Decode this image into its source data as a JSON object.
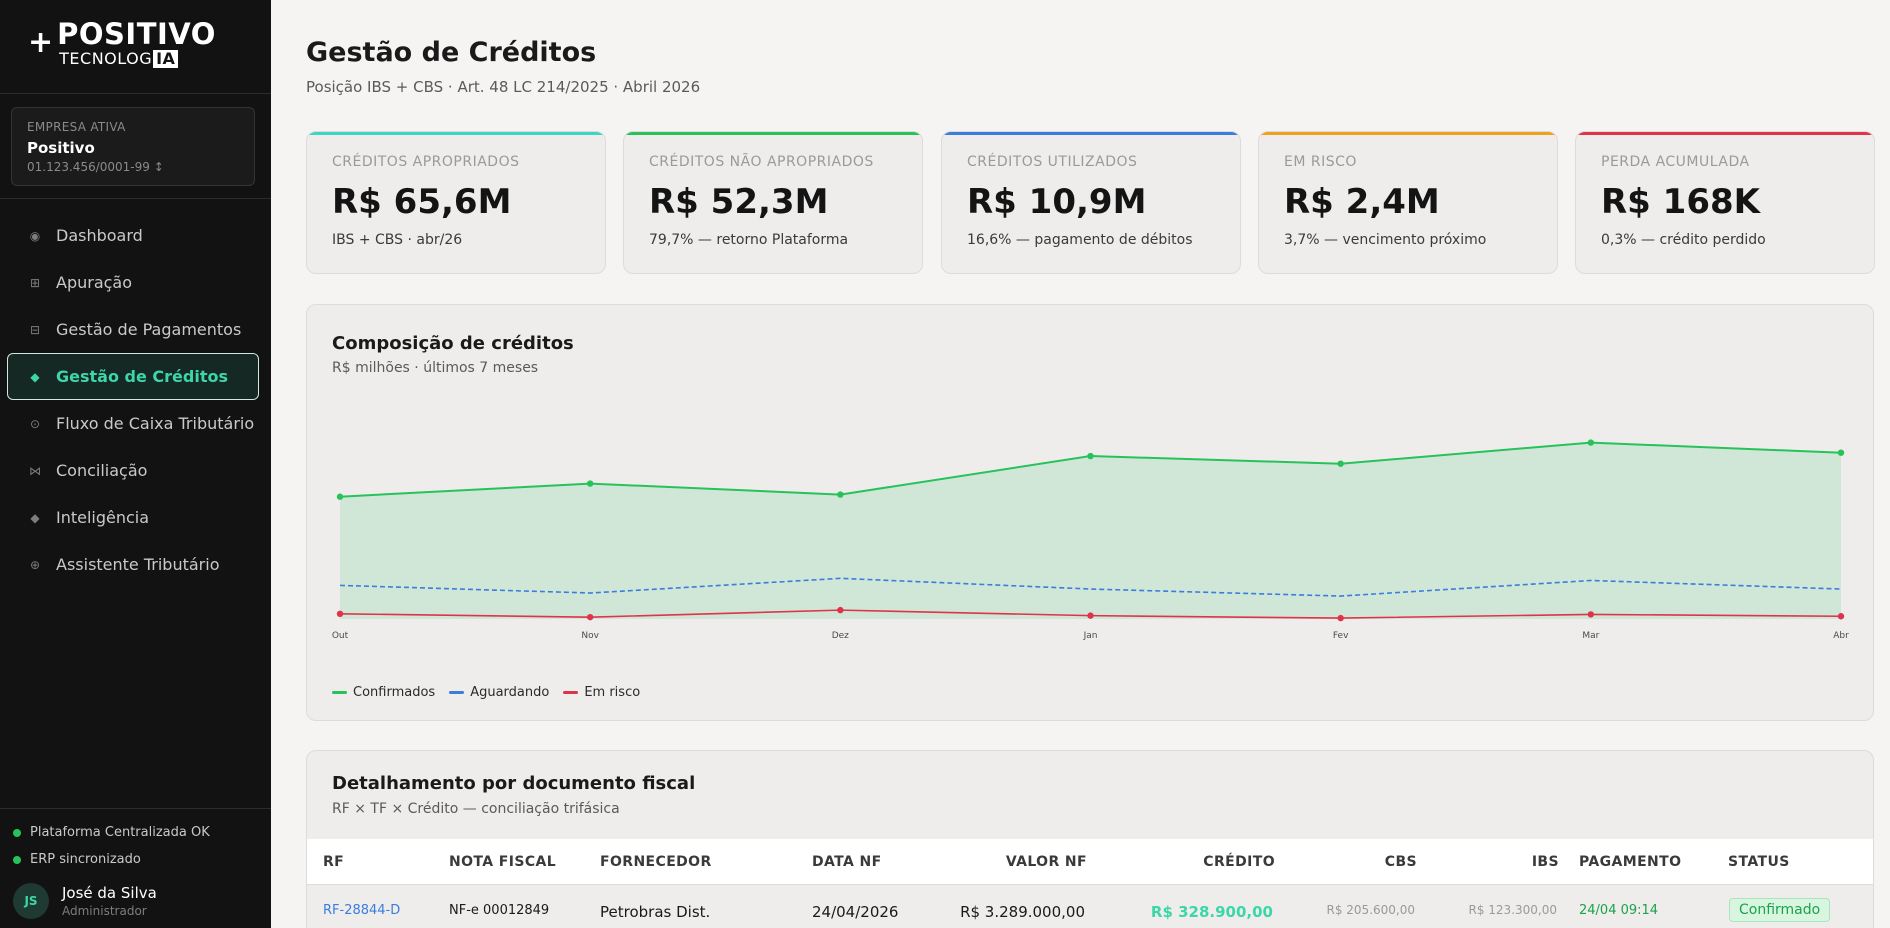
{
  "brand": {
    "name": "POSITIVO",
    "sub": "TECNOLOG",
    "sub_badge": "IA"
  },
  "company": {
    "caption": "EMPRESA ATIVA",
    "name": "Positivo",
    "doc": "01.123.456/0001-99 ↕"
  },
  "nav": [
    {
      "label": "Dashboard",
      "icon": "circle-icon"
    },
    {
      "label": "Apuração",
      "icon": "grid-icon"
    },
    {
      "label": "Gestão de Pagamentos",
      "icon": "layout-icon"
    },
    {
      "label": "Gestão de Créditos",
      "icon": "diamond-icon",
      "active": true
    },
    {
      "label": "Fluxo de Caixa Tributário",
      "icon": "target-icon"
    },
    {
      "label": "Conciliação",
      "icon": "bowtie-icon"
    },
    {
      "label": "Inteligência",
      "icon": "diamond-small-icon"
    },
    {
      "label": "Assistente Tributário",
      "icon": "globe-icon"
    }
  ],
  "status": {
    "platform": "Plataforma Centralizada OK",
    "erp": "ERP sincronizado",
    "color": "#27c25a"
  },
  "user": {
    "initials": "JS",
    "name": "José da Silva",
    "role": "Administrador"
  },
  "page": {
    "title": "Gestão de Créditos",
    "subtitle": "Posição IBS + CBS · Art. 48 LC 214/2025 · Abril 2026"
  },
  "kpis": [
    {
      "label": "CRÉDITOS APROPRIADOS",
      "value": "R$ 65,6M",
      "note": "IBS + CBS · abr/26",
      "accent": "#3dd6c4"
    },
    {
      "label": "CRÉDITOS NÃO APROPRIADOS",
      "value": "R$ 52,3M",
      "note": "79,7% — retorno Plataforma",
      "accent": "#27c25a"
    },
    {
      "label": "CRÉDITOS UTILIZADOS",
      "value": "R$ 10,9M",
      "note": "16,6% — pagamento de débitos",
      "accent": "#3b7ddd"
    },
    {
      "label": "EM RISCO",
      "value": "R$ 2,4M",
      "note": "3,7% — vencimento próximo",
      "accent": "#f0a020"
    },
    {
      "label": "PERDA ACUMULADA",
      "value": "R$ 168K",
      "note": "0,3% — crédito perdido",
      "accent": "#e0334a"
    }
  ],
  "composition": {
    "title": "Composição de créditos",
    "subtitle": "R$ milhões · últimos 7 meses"
  },
  "chart_data": {
    "type": "area",
    "categories": [
      "Out",
      "Nov",
      "Dez",
      "Jan",
      "Fev",
      "Mar",
      "Abr"
    ],
    "ylim": [
      0,
      70
    ],
    "grid": false,
    "legend": "bottom-left",
    "series": [
      {
        "name": "Confirmados",
        "values": [
          40,
          44.3,
          40.7,
          53.3,
          50.8,
          57.7,
          54.4
        ],
        "color": "#27c25a",
        "fill": "#d0e7d8",
        "style": "solid"
      },
      {
        "name": "Aguardando",
        "values": [
          11,
          8.5,
          13.3,
          9.8,
          7.5,
          12.6,
          9.8
        ],
        "color": "#3b7ddd",
        "style": "dashed"
      },
      {
        "name": "Em risco",
        "values": [
          1.7,
          0.6,
          2.9,
          1.1,
          0.3,
          1.5,
          0.9
        ],
        "color": "#e0334a",
        "style": "solid"
      }
    ]
  },
  "details": {
    "title": "Detalhamento por documento fiscal",
    "subtitle": "RF × TF × Crédito — conciliação trifásica",
    "columns": [
      "RF",
      "NOTA FISCAL",
      "FORNECEDOR",
      "DATA NF",
      "VALOR NF",
      "CRÉDITO",
      "CBS",
      "IBS",
      "PAGAMENTO",
      "STATUS"
    ],
    "rows": [
      {
        "rf": "RF-28844-D",
        "nf": "NF-e 00012849",
        "fornecedor": "Petrobras Dist.",
        "data": "24/04/2026",
        "valor": "R$ 3.289.000,00",
        "credito": "R$ 328.900,00",
        "cbs": "R$ 205.600,00",
        "ibs": "R$ 123.300,00",
        "pagamento": "24/04 09:14",
        "status": "Confirmado"
      }
    ]
  }
}
